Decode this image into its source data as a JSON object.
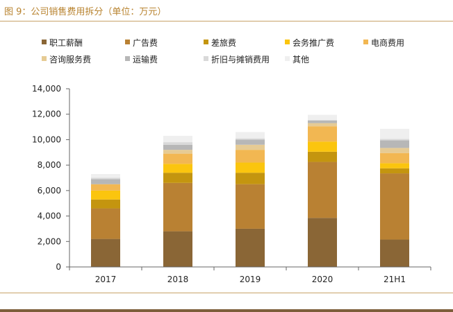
{
  "header": {
    "title": "图 9：公司销售费用拆分（单位：万元）"
  },
  "chart_data": {
    "type": "bar",
    "stacked": true,
    "title": "图 9：公司销售费用拆分（单位：万元）",
    "xlabel": "",
    "ylabel": "",
    "ylim": [
      0,
      14000
    ],
    "yticks": [
      0,
      2000,
      4000,
      6000,
      8000,
      10000,
      12000,
      14000
    ],
    "ytick_labels": [
      "0",
      "2,000",
      "4,000",
      "6,000",
      "8,000",
      "10,000",
      "12,000",
      "14,000"
    ],
    "categories": [
      "2017",
      "2018",
      "2019",
      "2020",
      "21H1"
    ],
    "legend_position": "top",
    "series": [
      {
        "name": "职工薪酬",
        "color": "#8a6636",
        "values": [
          2200,
          2800,
          3000,
          3850,
          2150
        ]
      },
      {
        "name": "广告费",
        "color": "#b98133",
        "values": [
          2400,
          3800,
          3500,
          4400,
          5200
        ]
      },
      {
        "name": "差旅费",
        "color": "#c4950f",
        "values": [
          700,
          800,
          900,
          800,
          400
        ]
      },
      {
        "name": "会务推广费",
        "color": "#fbc50e",
        "values": [
          700,
          700,
          800,
          800,
          400
        ]
      },
      {
        "name": "电商费用",
        "color": "#f2b752",
        "values": [
          500,
          800,
          1000,
          1200,
          800
        ]
      },
      {
        "name": "咨询服务费",
        "color": "#e6cb94",
        "values": [
          0,
          300,
          400,
          250,
          400
        ]
      },
      {
        "name": "运输费",
        "color": "#b7b7b7",
        "values": [
          400,
          400,
          400,
          200,
          600
        ]
      },
      {
        "name": "折旧与摊销费用",
        "color": "#d9d9d9",
        "values": [
          100,
          200,
          100,
          50,
          100
        ]
      },
      {
        "name": "其他",
        "color": "#efefef",
        "values": [
          300,
          500,
          500,
          400,
          800
        ]
      }
    ]
  }
}
